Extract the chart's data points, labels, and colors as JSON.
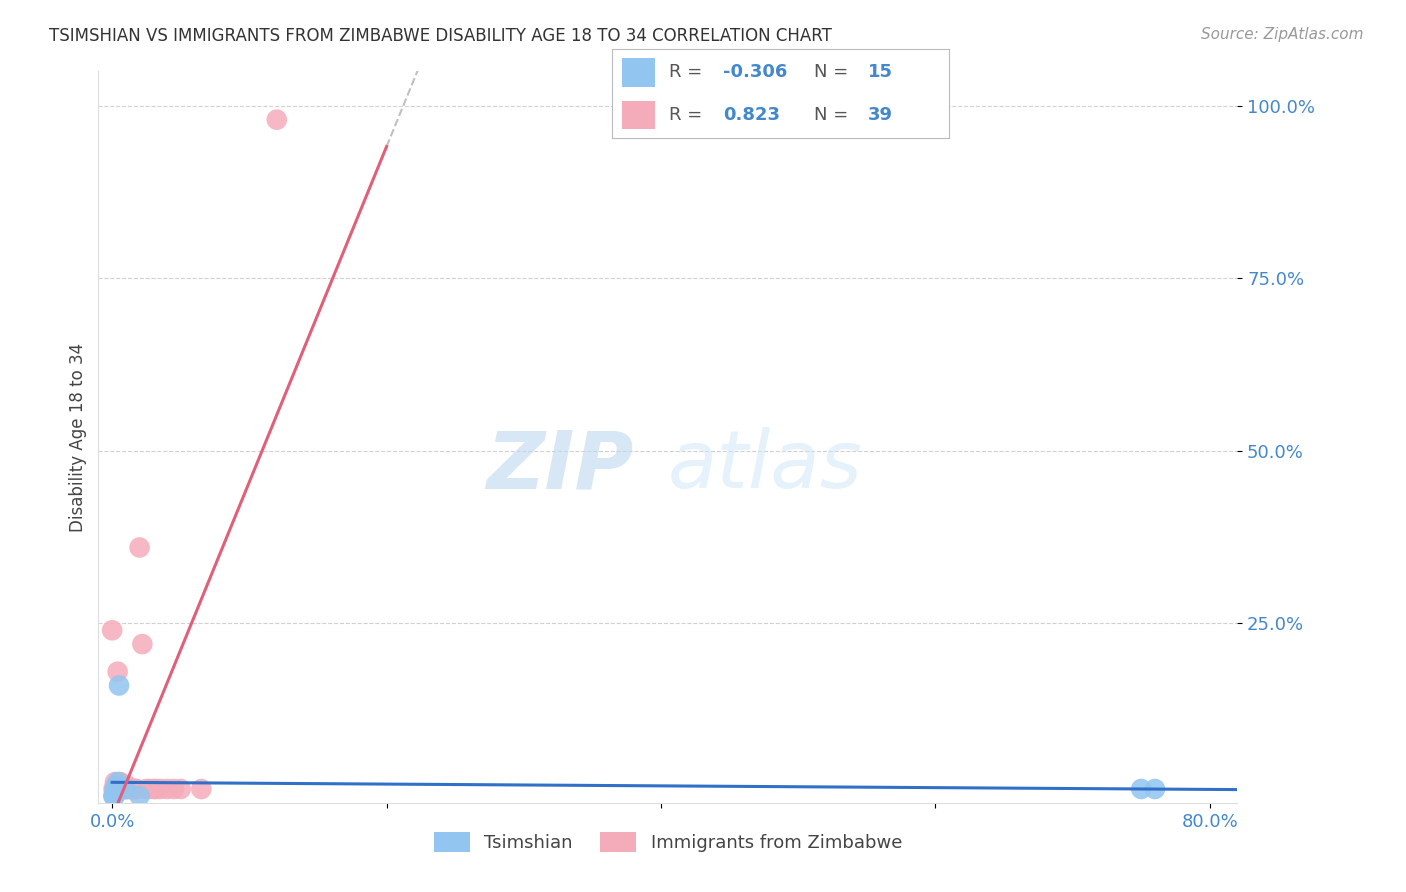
{
  "title": "TSIMSHIAN VS IMMIGRANTS FROM ZIMBABWE DISABILITY AGE 18 TO 34 CORRELATION CHART",
  "source": "Source: ZipAtlas.com",
  "xlabel_tsimshian": "Tsimshian",
  "xlabel_zimbabwe": "Immigrants from Zimbabwe",
  "ylabel": "Disability Age 18 to 34",
  "xlim": [
    -0.01,
    0.82
  ],
  "ylim": [
    -0.01,
    1.05
  ],
  "xticks": [
    0.0,
    0.2,
    0.4,
    0.6,
    0.8
  ],
  "xtick_labels": [
    "0.0%",
    "",
    "",
    "",
    "80.0%"
  ],
  "yticks": [
    0.25,
    0.5,
    0.75,
    1.0
  ],
  "ytick_labels": [
    "25.0%",
    "50.0%",
    "75.0%",
    "100.0%"
  ],
  "R_tsimshian": "-0.306",
  "N_tsimshian": "15",
  "R_zimbabwe": "0.823",
  "N_zimbabwe": "39",
  "color_tsimshian": "#92C5F0",
  "color_zimbabwe": "#F4ACBA",
  "line_color_tsimshian": "#3070C8",
  "line_color_zimbabwe": "#E0607A",
  "watermark_zip": "ZIP",
  "watermark_atlas": "atlas",
  "tsimshian_x": [
    0.001,
    0.001,
    0.002,
    0.002,
    0.002,
    0.003,
    0.003,
    0.004,
    0.004,
    0.005,
    0.005,
    0.01,
    0.02,
    0.75,
    0.76
  ],
  "tsimshian_y": [
    0.0,
    0.0,
    0.01,
    0.01,
    0.0,
    0.01,
    0.015,
    0.01,
    0.02,
    0.01,
    0.16,
    0.01,
    0.0,
    0.01,
    0.01
  ],
  "zimbabwe_x": [
    0.0,
    0.001,
    0.002,
    0.002,
    0.003,
    0.003,
    0.004,
    0.004,
    0.005,
    0.005,
    0.006,
    0.006,
    0.007,
    0.008,
    0.008,
    0.009,
    0.01,
    0.01,
    0.011,
    0.012,
    0.013,
    0.014,
    0.015,
    0.015,
    0.016,
    0.017,
    0.018,
    0.02,
    0.022,
    0.025,
    0.027,
    0.03,
    0.032,
    0.035,
    0.04,
    0.045,
    0.05,
    0.065,
    0.12
  ],
  "zimbabwe_y": [
    0.24,
    0.01,
    0.01,
    0.02,
    0.01,
    0.015,
    0.01,
    0.18,
    0.01,
    0.02,
    0.01,
    0.02,
    0.01,
    0.01,
    0.015,
    0.01,
    0.01,
    0.01,
    0.015,
    0.01,
    0.01,
    0.01,
    0.01,
    0.01,
    0.01,
    0.01,
    0.01,
    0.36,
    0.22,
    0.01,
    0.01,
    0.01,
    0.01,
    0.01,
    0.01,
    0.01,
    0.01,
    0.01,
    0.98
  ],
  "zim_trend_x0": 0.0,
  "zim_trend_x1": 0.2,
  "zim_trend_dash_x0": 0.2,
  "zim_trend_dash_x1": 0.42,
  "background_color": "#ffffff",
  "grid_color": "#cccccc",
  "title_fontsize": 12,
  "source_fontsize": 11,
  "tick_fontsize": 13,
  "ylabel_fontsize": 12
}
